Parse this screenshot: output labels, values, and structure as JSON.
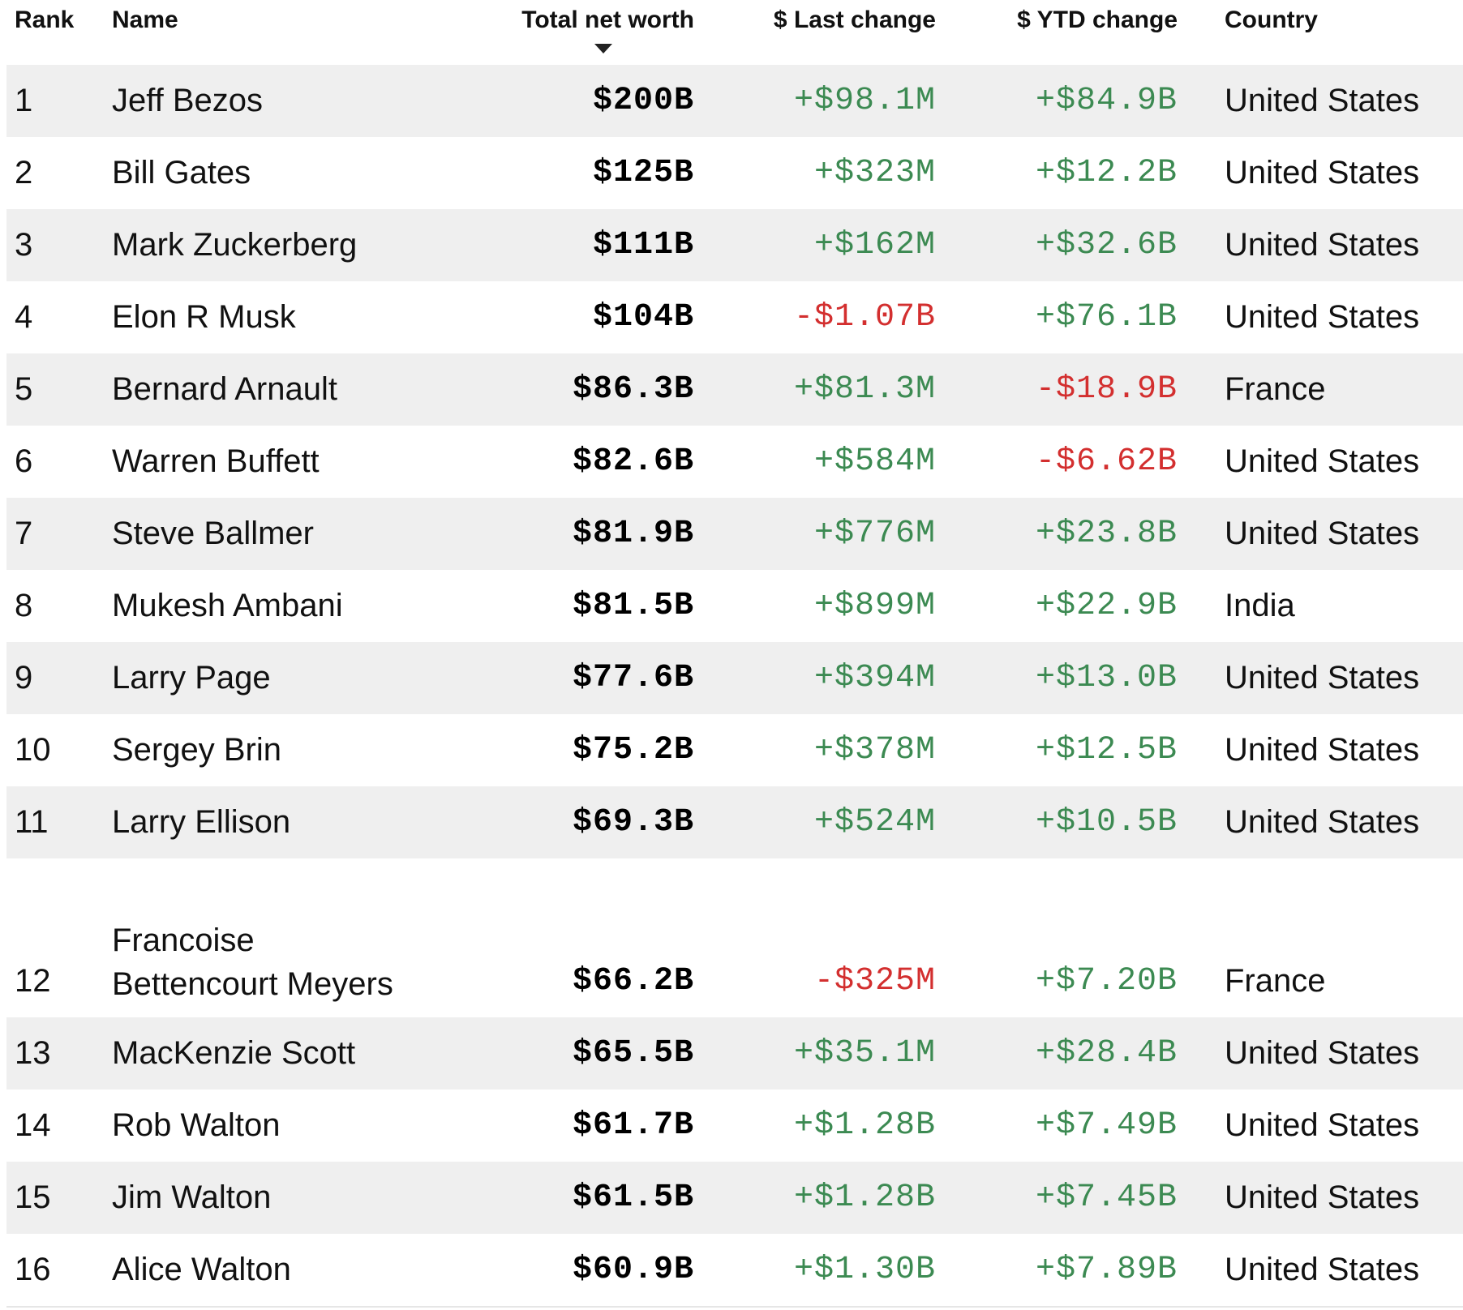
{
  "headers": {
    "rank": "Rank",
    "name": "Name",
    "worth": "Total net worth",
    "last": "$ Last change",
    "ytd": "$ YTD change",
    "country": "Country"
  },
  "sort_icon": "sort-desc-arrow",
  "colors": {
    "positive": "#3c8a52",
    "negative": "#d32f2f",
    "row_shade": "#efefef"
  },
  "rows": [
    {
      "rank": "1",
      "name": "Jeff Bezos",
      "worth": "$200B",
      "last": "+$98.1M",
      "ytd": "+$84.9B",
      "country": "United States"
    },
    {
      "rank": "2",
      "name": "Bill Gates",
      "worth": "$125B",
      "last": "+$323M",
      "ytd": "+$12.2B",
      "country": "United States"
    },
    {
      "rank": "3",
      "name": "Mark Zuckerberg",
      "worth": "$111B",
      "last": "+$162M",
      "ytd": "+$32.6B",
      "country": "United States"
    },
    {
      "rank": "4",
      "name": "Elon R Musk",
      "worth": "$104B",
      "last": "-$1.07B",
      "ytd": "+$76.1B",
      "country": "United States"
    },
    {
      "rank": "5",
      "name": "Bernard Arnault",
      "worth": "$86.3B",
      "last": "+$81.3M",
      "ytd": "-$18.9B",
      "country": "France"
    },
    {
      "rank": "6",
      "name": "Warren Buffett",
      "worth": "$82.6B",
      "last": "+$584M",
      "ytd": "-$6.62B",
      "country": "United States"
    },
    {
      "rank": "7",
      "name": "Steve Ballmer",
      "worth": "$81.9B",
      "last": "+$776M",
      "ytd": "+$23.8B",
      "country": "United States"
    },
    {
      "rank": "8",
      "name": "Mukesh Ambani",
      "worth": "$81.5B",
      "last": "+$899M",
      "ytd": "+$22.9B",
      "country": "India"
    },
    {
      "rank": "9",
      "name": "Larry Page",
      "worth": "$77.6B",
      "last": "+$394M",
      "ytd": "+$13.0B",
      "country": "United States"
    },
    {
      "rank": "10",
      "name": "Sergey Brin",
      "worth": "$75.2B",
      "last": "+$378M",
      "ytd": "+$12.5B",
      "country": "United States"
    },
    {
      "rank": "11",
      "name": "Larry Ellison",
      "worth": "$69.3B",
      "last": "+$524M",
      "ytd": "+$10.5B",
      "country": "United States"
    },
    {
      "rank": "12",
      "name": "Francoise Bettencourt Meyers",
      "worth": "$66.2B",
      "last": "-$325M",
      "ytd": "+$7.20B",
      "country": "France"
    },
    {
      "rank": "13",
      "name": "MacKenzie Scott",
      "worth": "$65.5B",
      "last": "+$35.1M",
      "ytd": "+$28.4B",
      "country": "United States"
    },
    {
      "rank": "14",
      "name": "Rob Walton",
      "worth": "$61.7B",
      "last": "+$1.28B",
      "ytd": "+$7.49B",
      "country": "United States"
    },
    {
      "rank": "15",
      "name": "Jim Walton",
      "worth": "$61.5B",
      "last": "+$1.28B",
      "ytd": "+$7.45B",
      "country": "United States"
    },
    {
      "rank": "16",
      "name": "Alice Walton",
      "worth": "$60.9B",
      "last": "+$1.30B",
      "ytd": "+$7.89B",
      "country": "United States"
    }
  ]
}
